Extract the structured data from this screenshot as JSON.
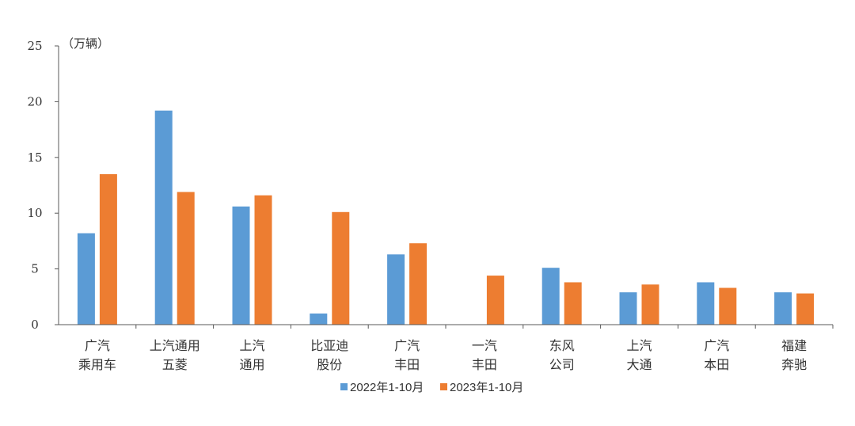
{
  "chart_data": {
    "type": "bar",
    "unit_label": "（万辆）",
    "categories": [
      [
        "广汽",
        "乘用车"
      ],
      [
        "上汽通用",
        "五菱"
      ],
      [
        "上汽",
        "通用"
      ],
      [
        "比亚迪",
        "股份"
      ],
      [
        "广汽",
        "丰田"
      ],
      [
        "一汽",
        "丰田"
      ],
      [
        "东风",
        "公司"
      ],
      [
        "上汽",
        "大通"
      ],
      [
        "广汽",
        "本田"
      ],
      [
        "福建",
        "奔驰"
      ]
    ],
    "series": [
      {
        "name": "2022年1-10月",
        "color": "#5B9BD5",
        "values": [
          8.2,
          19.2,
          10.6,
          1.0,
          6.3,
          0,
          5.1,
          2.9,
          3.8,
          2.9
        ]
      },
      {
        "name": "2023年1-10月",
        "color": "#ED7D31",
        "values": [
          13.5,
          11.9,
          11.6,
          10.1,
          7.3,
          4.4,
          3.8,
          3.6,
          3.3,
          2.8
        ]
      }
    ],
    "ylim": [
      0,
      25
    ],
    "yticks": [
      0,
      5,
      10,
      15,
      20,
      25
    ],
    "grid": false,
    "legend_position": "bottom"
  }
}
